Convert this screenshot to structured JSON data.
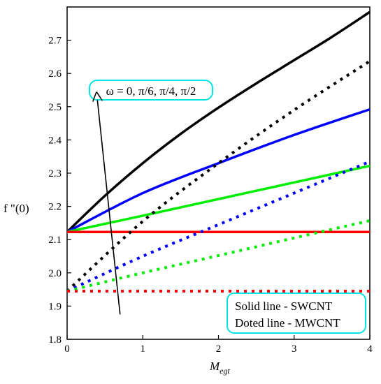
{
  "chart_data": {
    "type": "line",
    "title": "",
    "xlabel_main": "M",
    "xlabel_sub": "egt",
    "ylabel": "f \"(0)",
    "xlim": [
      0,
      4
    ],
    "ylim": [
      1.8,
      2.8
    ],
    "xticks": [
      0,
      1,
      2,
      3,
      4
    ],
    "xtick_labels": [
      "0",
      "1",
      "2",
      "3",
      "4"
    ],
    "yticks": [
      1.8,
      1.9,
      2.0,
      2.1,
      2.2,
      2.3,
      2.4,
      2.5,
      2.6,
      2.7
    ],
    "ytick_labels": [
      "1.8",
      "1.9",
      "2.0",
      "2.1",
      "2.2",
      "2.3",
      "2.4",
      "2.5",
      "2.6",
      "2.7"
    ],
    "grid": false,
    "series": [
      {
        "color": "#000000",
        "style": "solid",
        "x": [
          0,
          0.5,
          1,
          1.5,
          2,
          2.5,
          3,
          3.5,
          4
        ],
        "y": [
          2.123,
          2.232,
          2.33,
          2.418,
          2.497,
          2.57,
          2.64,
          2.71,
          2.785
        ]
      },
      {
        "color": "#0000ff",
        "style": "solid",
        "x": [
          0,
          1,
          2,
          3,
          4
        ],
        "y": [
          2.123,
          2.24,
          2.33,
          2.415,
          2.492
        ]
      },
      {
        "color": "#00ee00",
        "style": "solid",
        "x": [
          0,
          1,
          2,
          3,
          4
        ],
        "y": [
          2.123,
          2.172,
          2.222,
          2.272,
          2.322
        ]
      },
      {
        "color": "#ff0000",
        "style": "solid",
        "x": [
          0,
          4
        ],
        "y": [
          2.123,
          2.123
        ]
      },
      {
        "color": "#000000",
        "style": "dotted",
        "x": [
          0,
          1,
          2,
          3,
          4
        ],
        "y": [
          1.945,
          2.155,
          2.33,
          2.49,
          2.637
        ]
      },
      {
        "color": "#0000ff",
        "style": "dotted",
        "x": [
          0,
          1,
          2,
          3,
          4
        ],
        "y": [
          1.945,
          2.05,
          2.145,
          2.24,
          2.335
        ]
      },
      {
        "color": "#00ee00",
        "style": "dotted",
        "x": [
          0,
          1,
          2,
          3,
          4
        ],
        "y": [
          1.945,
          2.0,
          2.052,
          2.105,
          2.157
        ]
      },
      {
        "color": "#ff0000",
        "style": "dotted",
        "x": [
          0,
          4
        ],
        "y": [
          1.945,
          1.945
        ]
      }
    ],
    "annotations": {
      "omega_label": "ω = 0, π/6, π/4, π/2",
      "arrow_from": [
        0.7,
        1.875
      ],
      "arrow_to": [
        0.4,
        2.52
      ],
      "legend_line1": "Solid line - SWCNT",
      "legend_line2": "Doted line - MWCNT",
      "box_border_color": "#00e5e5"
    }
  }
}
